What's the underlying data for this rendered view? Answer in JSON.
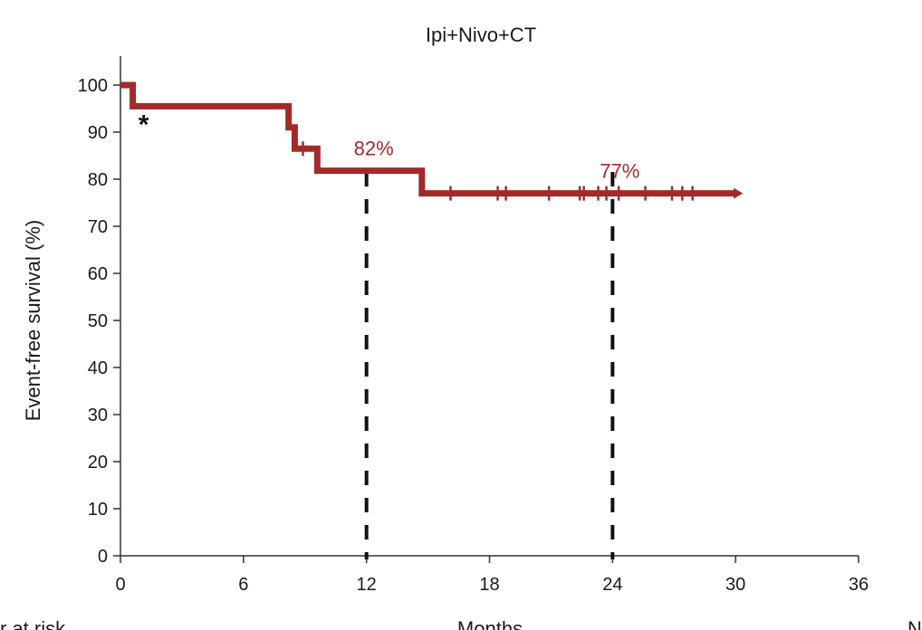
{
  "chart_data": {
    "type": "line",
    "title": "Ipi+Nivo+CT",
    "xlabel": "Months",
    "ylabel": "Event-free survival (%)",
    "xlim": [
      0,
      36
    ],
    "ylim": [
      0,
      100
    ],
    "xticks": [
      0,
      6,
      12,
      18,
      24,
      30,
      36
    ],
    "yticks": [
      0,
      10,
      20,
      30,
      40,
      50,
      60,
      70,
      80,
      90,
      100
    ],
    "grid": false,
    "series": [
      {
        "color": "#a32a2a",
        "steps": [
          {
            "x": 0,
            "y": 100
          },
          {
            "x": 0.6,
            "y": 95.5
          },
          {
            "x": 8.2,
            "y": 91
          },
          {
            "x": 8.5,
            "y": 86.5
          },
          {
            "x": 9.6,
            "y": 81.8
          },
          {
            "x": 14.7,
            "y": 77
          },
          {
            "x": 30,
            "y": 77
          }
        ],
        "censor_x": [
          8.9,
          16.1,
          18.4,
          18.8,
          20.9,
          22.4,
          22.6,
          23.3,
          23.7,
          24.3,
          25.6,
          26.9,
          27.4,
          27.9
        ]
      }
    ],
    "annotations": [
      {
        "text": "82%",
        "x": 12,
        "y": 81.8,
        "color": "#a32a2a"
      },
      {
        "text": "77%",
        "x": 24,
        "y": 77,
        "color": "#a32a2a"
      },
      {
        "text": "*",
        "x": 0.6,
        "y": 92,
        "color": "#111111"
      }
    ],
    "reference_lines_x": [
      12,
      24
    ],
    "bottom_fragments": [
      {
        "text": "r at risk"
      },
      {
        "text": "Months"
      },
      {
        "text": "N"
      }
    ]
  }
}
